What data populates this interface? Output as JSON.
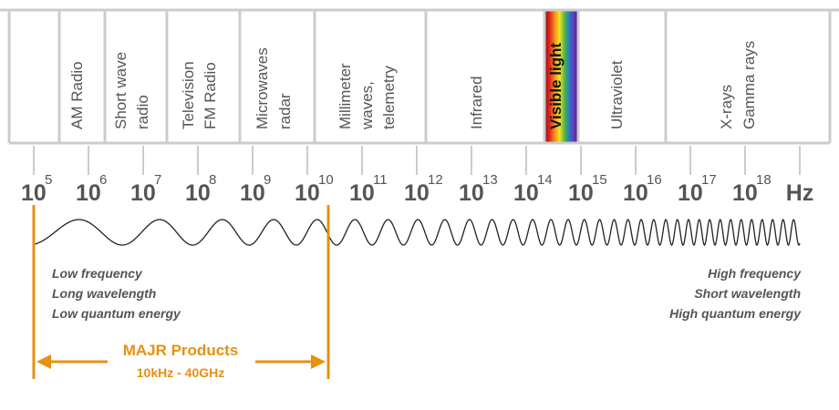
{
  "bands": [
    {
      "lines": [
        "AM Radio"
      ]
    },
    {
      "lines": [
        "Short wave",
        "radio"
      ]
    },
    {
      "lines": [
        "Television",
        "FM Radio"
      ]
    },
    {
      "lines": [
        "Microwaves",
        "radar"
      ]
    },
    {
      "lines": [
        "Millimeter",
        "waves,",
        "telemetry"
      ]
    },
    {
      "lines": [
        "Infrared"
      ]
    },
    {
      "lines": [
        "Visible light"
      ]
    },
    {
      "lines": [
        "Ultraviolet"
      ]
    },
    {
      "lines": [
        "X-rays",
        "Gamma rays"
      ]
    }
  ],
  "scale": {
    "base": "10",
    "exponents": [
      5,
      6,
      7,
      8,
      9,
      10,
      11,
      12,
      13,
      14,
      15,
      16,
      17,
      18
    ],
    "unit": "Hz"
  },
  "notes": {
    "left": [
      "Low frequency",
      "Long wavelength",
      "Low quantum energy"
    ],
    "right": [
      "High frequency",
      "Short wavelength",
      "High quantum energy"
    ]
  },
  "products": {
    "title": "MAJR Products",
    "range": "10kHz - 40GHz"
  }
}
